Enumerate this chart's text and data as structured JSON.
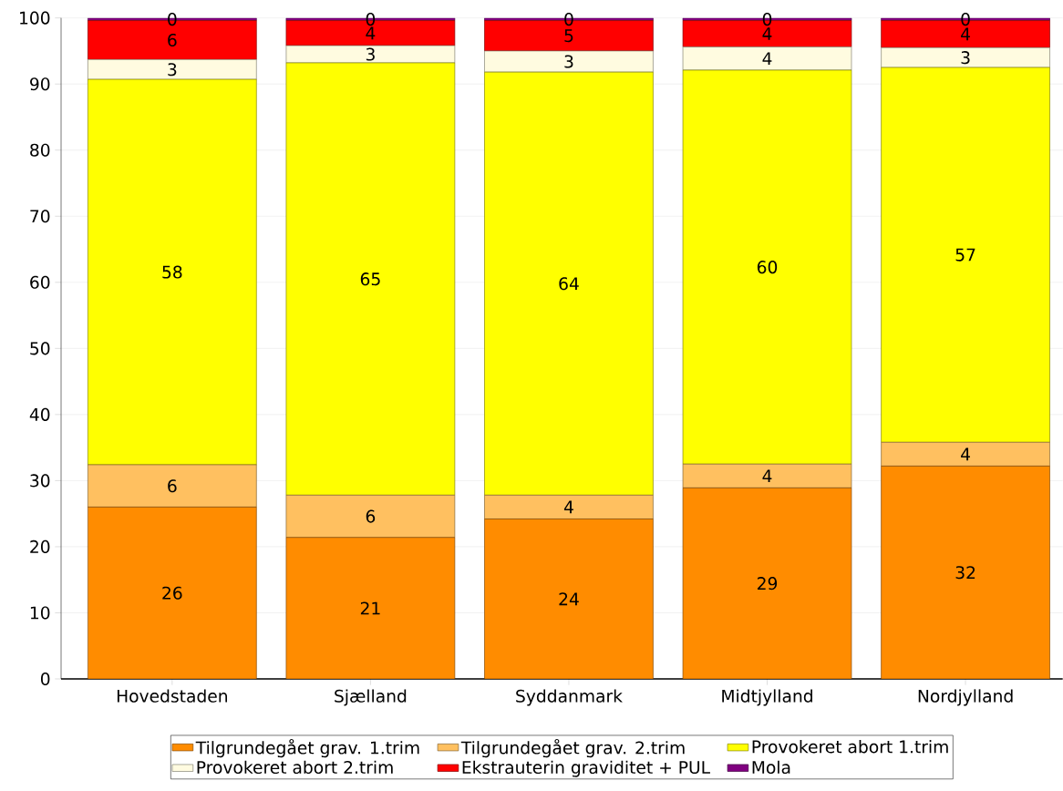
{
  "chart_data": {
    "type": "bar",
    "stacked": true,
    "categories": [
      "Hovedstaden",
      "Sjælland",
      "Syddanmark",
      "Midtjylland",
      "Nordjylland"
    ],
    "ylim": [
      0,
      100
    ],
    "yticks": [
      0,
      10,
      20,
      30,
      40,
      50,
      60,
      70,
      80,
      90,
      100
    ],
    "grid": "y",
    "legend": "bottom",
    "series": [
      {
        "name": "Tilgrundegået grav. 1.trim",
        "color": "#ff8c00",
        "values": [
          26.0,
          21.4,
          24.2,
          28.9,
          32.2
        ],
        "value_labels": [
          "26",
          "21",
          "24",
          "29",
          "32"
        ]
      },
      {
        "name": "Tilgrundegået grav. 2.trim",
        "color": "#ffc060",
        "values": [
          6.4,
          6.4,
          3.6,
          3.6,
          3.6
        ],
        "value_labels": [
          "6",
          "6",
          "4",
          "4",
          "4"
        ]
      },
      {
        "name": "Provokeret abort 1.trim",
        "color": "#ffff00",
        "values": [
          58.3,
          65.4,
          64.0,
          59.6,
          56.7
        ],
        "value_labels": [
          "58",
          "65",
          "64",
          "60",
          "57"
        ]
      },
      {
        "name": "Provokeret abort 2.trim",
        "color": "#fffbe0",
        "values": [
          3.0,
          2.6,
          3.2,
          3.5,
          3.0
        ],
        "value_labels": [
          "3",
          "3",
          "3",
          "4",
          "3"
        ]
      },
      {
        "name": "Ekstrauterin graviditet + PUL",
        "color": "#ff0000",
        "values": [
          5.9,
          3.8,
          4.6,
          4.0,
          4.1
        ],
        "value_labels": [
          "6",
          "4",
          "5",
          "4",
          "4"
        ]
      },
      {
        "name": "Mola",
        "color": "#800080",
        "values": [
          0.4,
          0.4,
          0.4,
          0.4,
          0.4
        ],
        "value_labels": [
          "0",
          "0",
          "0",
          "0",
          "0"
        ]
      }
    ]
  }
}
